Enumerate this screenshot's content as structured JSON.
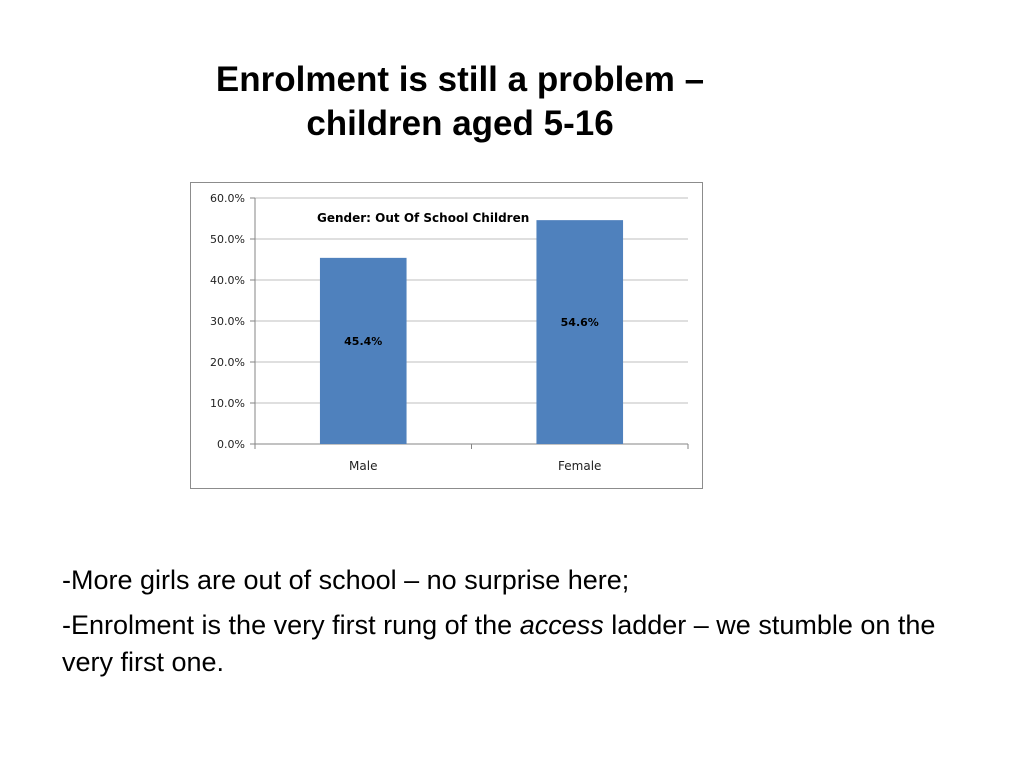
{
  "slide": {
    "title_line1": "Enrolment is still a problem –",
    "title_line2": "children aged 5-16"
  },
  "bullets": [
    {
      "text": "-More girls are out of school – no surprise here;"
    },
    {
      "before": "-Enrolment is the very first rung of the ",
      "emphasis": "access",
      "after": " ladder – we stumble on the very first one."
    }
  ],
  "colors": {
    "bar": "#4f81bd",
    "grid": "#bfbfbf",
    "axis": "#868686",
    "border": "#8c8c8c"
  },
  "chart_data": {
    "type": "bar",
    "title": "Gender: Out Of School Children",
    "categories": [
      "Male",
      "Female"
    ],
    "values": [
      45.4,
      54.6
    ],
    "data_labels": [
      "45.4%",
      "54.6%"
    ],
    "y_ticks": [
      "0.0%",
      "10.0%",
      "20.0%",
      "30.0%",
      "40.0%",
      "50.0%",
      "60.0%"
    ],
    "ylim": [
      0,
      60
    ],
    "grid": true,
    "legend": "none"
  }
}
